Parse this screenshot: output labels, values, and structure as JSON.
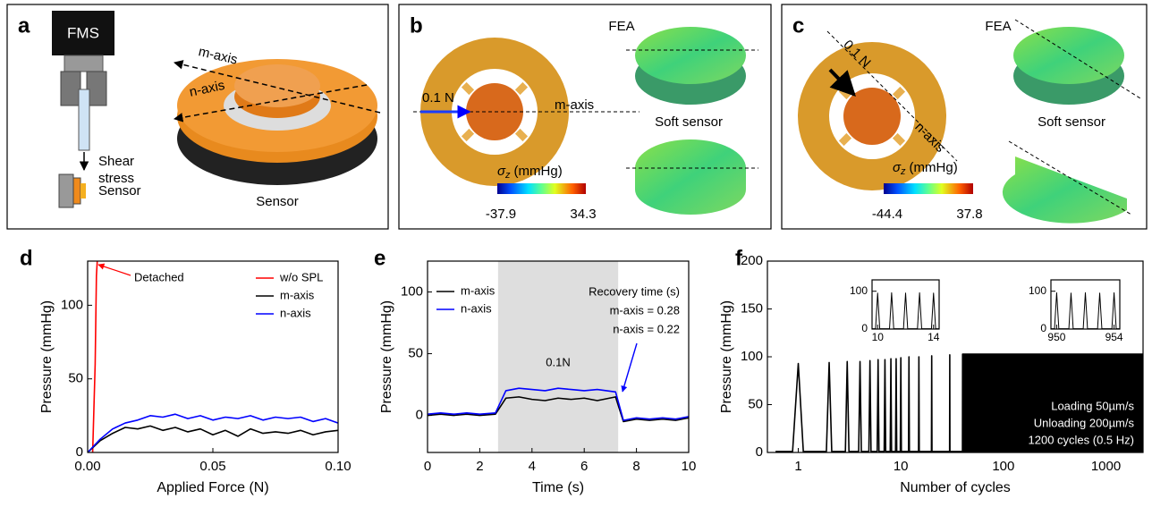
{
  "panels": {
    "a": {
      "label": "a",
      "fms": "FMS",
      "shear": [
        "Shear",
        "stress"
      ],
      "sensor_small": "Sensor",
      "sensor": "Sensor",
      "m_axis": "m-axis",
      "n_axis": "n-axis"
    },
    "b": {
      "label": "b",
      "method": "FEA",
      "force": "0.1 N",
      "axis": "m-axis",
      "sensor": "Soft sensor",
      "colorbar": {
        "symbol": "σ",
        "sub": "z",
        "unit": "(mmHg)",
        "min": -37.9,
        "max": 34.3
      }
    },
    "c": {
      "label": "c",
      "method": "FEA",
      "force": "0.1 N",
      "axis": "n-axis",
      "sensor": "Soft sensor",
      "colorbar": {
        "symbol": "σ",
        "sub": "z",
        "unit": "(mmHg)",
        "min": -44.4,
        "max": 37.8
      }
    }
  },
  "chart_data": [
    {
      "type": "line",
      "label": "d",
      "xlabel": "Applied Force (N)",
      "ylabel": "Pressure (mmHg)",
      "xlim": [
        0,
        0.1
      ],
      "ylim": [
        0,
        130
      ],
      "xticks": [
        {
          "value": 0,
          "label": "0.00"
        },
        {
          "value": 0.05,
          "label": "0.05"
        },
        {
          "value": 0.1,
          "label": "0.10"
        }
      ],
      "yticks": [
        0,
        50,
        100
      ],
      "legend": "upper right",
      "annotations": [
        "Detached"
      ],
      "series": [
        {
          "name": "w/o SPL",
          "color": "#ff0000",
          "x": [
            0.002,
            0.003,
            0.0035,
            0.004
          ],
          "values": [
            0,
            60,
            120,
            135
          ]
        },
        {
          "name": "m-axis",
          "color": "#000000",
          "x": [
            0,
            0.005,
            0.01,
            0.015,
            0.02,
            0.025,
            0.03,
            0.035,
            0.04,
            0.045,
            0.05,
            0.055,
            0.06,
            0.065,
            0.07,
            0.075,
            0.08,
            0.085,
            0.09,
            0.095,
            0.1
          ],
          "values": [
            0,
            8,
            13,
            17,
            16,
            18,
            15,
            17,
            14,
            16,
            12,
            15,
            11,
            16,
            13,
            14,
            13,
            15,
            12,
            14,
            15
          ]
        },
        {
          "name": "n-axis",
          "color": "#0000ff",
          "x": [
            0,
            0.005,
            0.01,
            0.015,
            0.02,
            0.025,
            0.03,
            0.035,
            0.04,
            0.045,
            0.05,
            0.055,
            0.06,
            0.065,
            0.07,
            0.075,
            0.08,
            0.085,
            0.09,
            0.095,
            0.1
          ],
          "values": [
            0,
            9,
            16,
            20,
            22,
            25,
            24,
            26,
            23,
            25,
            22,
            24,
            23,
            25,
            22,
            24,
            23,
            24,
            21,
            23,
            20
          ]
        }
      ]
    },
    {
      "type": "line",
      "label": "e",
      "xlabel": "Time (s)",
      "ylabel": "Pressure (mmHg)",
      "xlim": [
        0,
        10
      ],
      "ylim": [
        -30,
        125
      ],
      "xticks": [
        0,
        2,
        4,
        6,
        8,
        10
      ],
      "yticks": [
        0,
        50,
        100
      ],
      "highlight": [
        2.7,
        7.3
      ],
      "legend": "upper left",
      "annotations": [
        "0.1N",
        "Recovery time (s)",
        "m-axis = 0.28",
        "n-axis = 0.22"
      ],
      "series": [
        {
          "name": "m-axis",
          "color": "#000000",
          "x": [
            0,
            0.5,
            1,
            1.5,
            2,
            2.6,
            3,
            3.5,
            4,
            4.5,
            5,
            5.5,
            6,
            6.5,
            7.2,
            7.5,
            8,
            8.5,
            9,
            9.5,
            10
          ],
          "values": [
            0,
            1,
            0,
            1,
            0,
            1,
            14,
            15,
            13,
            12,
            14,
            13,
            14,
            12,
            15,
            -5,
            -3,
            -4,
            -3,
            -4,
            -2
          ]
        },
        {
          "name": "n-axis",
          "color": "#0000ff",
          "x": [
            0,
            0.5,
            1,
            1.5,
            2,
            2.6,
            3,
            3.5,
            4,
            4.5,
            5,
            5.5,
            6,
            6.5,
            7.2,
            7.5,
            8,
            8.5,
            9,
            9.5,
            10
          ],
          "values": [
            1,
            2,
            1,
            2,
            1,
            2,
            20,
            22,
            21,
            20,
            22,
            21,
            20,
            21,
            19,
            -4,
            -2,
            -3,
            -2,
            -3,
            -1
          ]
        }
      ]
    },
    {
      "type": "line",
      "label": "f",
      "xlabel": "Number of cycles",
      "ylabel": "Pressure (mmHg)",
      "xscale": "log",
      "xlim": [
        0.5,
        2300
      ],
      "ylim": [
        0,
        200
      ],
      "xticks": [
        1,
        10,
        100,
        1000
      ],
      "yticks": [
        0,
        50,
        100,
        150,
        200
      ],
      "annotations": [
        "Loading 50µm/s",
        "Unloading 200µm/s",
        "1200 cycles (0.5 Hz)"
      ],
      "series": [
        {
          "color": "#000000",
          "x": [
            0.6,
            0.88,
            1,
            1.12,
            1.88,
            2,
            2.12,
            2.88,
            3,
            3.12,
            3.88,
            4,
            4.12,
            4.88,
            5,
            5.12,
            5.88,
            6,
            6.12,
            6.88,
            7,
            7.12,
            7.88,
            8,
            8.12,
            8.88,
            9,
            9.12,
            9.88,
            10,
            10.12,
            11.88,
            12,
            12.12,
            14.88,
            15,
            15.12,
            19.88,
            20,
            20.12,
            29.88,
            30,
            30.12,
            39.88,
            40
          ],
          "values": [
            1,
            1,
            93,
            1,
            1,
            94,
            1,
            1,
            95,
            1,
            1,
            95,
            1,
            1,
            96,
            1,
            1,
            97,
            1,
            1,
            97,
            1,
            1,
            98,
            1,
            1,
            98,
            1,
            1,
            99,
            1,
            1,
            100,
            1,
            1,
            100,
            1,
            1,
            101,
            1,
            1,
            102,
            1,
            1,
            103
          ]
        },
        {
          "color": "#000000",
          "fill": true,
          "x": [
            40,
            2300
          ],
          "values": [
            103,
            103
          ]
        }
      ]
    },
    {
      "type": "line",
      "xlim": [
        9.6,
        14.4
      ],
      "ylim": [
        0,
        130
      ],
      "xticks": [
        10,
        14
      ],
      "yticks": [
        0,
        100
      ],
      "series": [
        {
          "color": "#000000",
          "x": [
            9.6,
            9.85,
            10,
            10.15,
            10.85,
            11,
            11.15,
            11.85,
            12,
            12.15,
            12.85,
            13,
            13.15,
            13.85,
            14,
            14.15,
            14.4
          ],
          "values": [
            1,
            1,
            95,
            1,
            1,
            96,
            1,
            1,
            95,
            1,
            1,
            96,
            1,
            1,
            95,
            1,
            1
          ]
        }
      ]
    },
    {
      "type": "line",
      "xlim": [
        949.6,
        954.4
      ],
      "ylim": [
        0,
        130
      ],
      "xticks": [
        950,
        954
      ],
      "yticks": [
        0,
        100
      ],
      "series": [
        {
          "color": "#000000",
          "x": [
            949.6,
            949.85,
            950,
            950.15,
            950.85,
            951,
            951.15,
            951.85,
            952,
            952.15,
            952.85,
            953,
            953.15,
            953.85,
            954,
            954.15,
            954.4
          ],
          "values": [
            1,
            1,
            96,
            1,
            1,
            95,
            1,
            1,
            96,
            1,
            1,
            95,
            1,
            1,
            96,
            1,
            1
          ]
        }
      ]
    }
  ]
}
